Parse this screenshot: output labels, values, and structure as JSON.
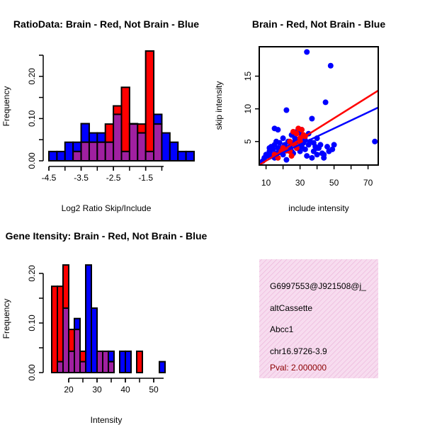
{
  "colors": {
    "red": "#ff0000",
    "blue": "#0000ff",
    "overlap": "#a020a0",
    "pink_bg": "#f5d8ec",
    "pval": "#8b0000"
  },
  "chart_data": [
    {
      "type": "bar",
      "id": "ratio-histogram",
      "title": "RatioData: Brain - Red, Not Brain - Blue",
      "xlabel": "Log2 Ratio Skip/Include",
      "ylabel": "Frequency",
      "xlim": [
        -4.5,
        -0.9
      ],
      "ylim": [
        0,
        0.26
      ],
      "xticks": [
        -4.5,
        -3.5,
        -2.5,
        -1.5
      ],
      "xtick_labels": [
        "-4.5",
        "-3.5",
        "-2.5",
        "-1.5"
      ],
      "yticks": [
        0,
        0.1,
        0.2
      ],
      "ytick_labels": [
        "0.00",
        "0.10",
        "0.20"
      ],
      "bin_start": -4.5,
      "bin_width": 0.25,
      "series": [
        {
          "name": "Brain",
          "color": "red",
          "values": [
            0,
            0,
            0,
            0.022,
            0.044,
            0.044,
            0.044,
            0.087,
            0.13,
            0.174,
            0.087,
            0.087,
            0.26,
            0.087,
            0,
            0,
            0,
            0
          ]
        },
        {
          "name": "Not Brain",
          "color": "blue",
          "values": [
            0.022,
            0.022,
            0.044,
            0.044,
            0.088,
            0.066,
            0.066,
            0.044,
            0.11,
            0.022,
            0.088,
            0.066,
            0.022,
            0.11,
            0.066,
            0.044,
            0.022,
            0.022
          ]
        }
      ]
    },
    {
      "type": "scatter",
      "id": "intensity-scatter",
      "title": "Brain - Red, Not Brain - Blue",
      "xlabel": "include intensity",
      "ylabel": "skip intensity",
      "xlim": [
        6,
        76
      ],
      "ylim": [
        1.4,
        19.5
      ],
      "xticks": [
        10,
        30,
        50,
        70
      ],
      "xtick_labels": [
        "10",
        "30",
        "50",
        "70"
      ],
      "yticks": [
        5,
        10,
        15
      ],
      "ytick_labels": [
        "5",
        "10",
        "15"
      ],
      "series": [
        {
          "name": "Brain",
          "color": "red",
          "x": [
            15,
            17,
            19,
            20,
            22,
            24,
            26,
            27,
            28,
            29,
            30,
            31,
            32,
            33,
            24,
            28,
            30,
            25
          ],
          "y": [
            3,
            2.5,
            3.5,
            4,
            3.6,
            5,
            6.5,
            4.5,
            6.2,
            7,
            5.5,
            6.8,
            6,
            5.8,
            3.5,
            4,
            5,
            2.8
          ],
          "fit": [
            [
              6,
              1.4
            ],
            [
              76,
              12.8
            ]
          ]
        },
        {
          "name": "Not Brain",
          "color": "blue",
          "x": [
            8,
            9,
            10,
            11,
            12,
            12,
            13,
            13,
            14,
            15,
            15,
            16,
            16,
            17,
            17,
            18,
            18,
            19,
            20,
            20,
            21,
            22,
            22,
            23,
            24,
            25,
            25,
            26,
            27,
            28,
            28,
            29,
            30,
            31,
            31,
            32,
            33,
            33,
            34,
            35,
            35,
            36,
            37,
            38,
            38,
            39,
            40,
            40,
            41,
            42,
            43,
            44,
            45,
            46,
            48,
            49,
            50,
            15,
            19,
            22,
            26,
            29,
            34,
            37,
            40,
            44,
            47,
            31,
            74
          ],
          "y": [
            2,
            2.5,
            3,
            2.8,
            3.5,
            4,
            3,
            4.2,
            3.8,
            2.5,
            4.5,
            3.2,
            5,
            4,
            6.8,
            3.5,
            4.8,
            4,
            3,
            5.5,
            4.5,
            3.8,
            9.8,
            5,
            4.2,
            6,
            3.5,
            4.8,
            5.5,
            4,
            6.5,
            5,
            3.5,
            4.2,
            6,
            4.8,
            3.8,
            5.2,
            18.7,
            4.5,
            6.2,
            5,
            8.5,
            3.5,
            4.8,
            4.2,
            5.5,
            3,
            4,
            4.5,
            3.2,
            2.5,
            11,
            4.2,
            16.6,
            3.8,
            4.5,
            7,
            3.8,
            2.2,
            3.2,
            6.5,
            2.8,
            2.5,
            4,
            3,
            3.5,
            6.8,
            5
          ],
          "fit": [
            [
              6,
              1.6
            ],
            [
              76,
              10.2
            ]
          ]
        }
      ]
    },
    {
      "type": "bar",
      "id": "intensity-histogram",
      "title": "Gene Itensity: Brain - Red, Not Brain - Blue",
      "xlabel": "Intensity",
      "ylabel": "Frequency",
      "xlim": [
        13,
        54
      ],
      "ylim": [
        0,
        0.22
      ],
      "xticks": [
        20,
        30,
        40,
        50
      ],
      "xtick_labels": [
        "20",
        "30",
        "40",
        "50"
      ],
      "yticks": [
        0,
        0.1,
        0.2
      ],
      "ytick_labels": [
        "0.00",
        "0.10",
        "0.20"
      ],
      "bin_start": 14,
      "bin_width": 2,
      "series": [
        {
          "name": "Brain",
          "color": "red",
          "values": [
            0.174,
            0.174,
            0.217,
            0.087,
            0.087,
            0.043,
            0,
            0,
            0.043,
            0.043,
            0.022,
            0,
            0,
            0,
            0,
            0.043,
            0,
            0,
            0,
            0
          ]
        },
        {
          "name": "Not Brain",
          "color": "blue",
          "values": [
            0,
            0.022,
            0.13,
            0.043,
            0.109,
            0.022,
            0.217,
            0.13,
            0.043,
            0.043,
            0.043,
            0,
            0.043,
            0.043,
            0,
            0,
            0,
            0,
            0,
            0.022
          ]
        }
      ]
    }
  ],
  "info_box": {
    "probe_id": "G6997553@J921508@j_",
    "event_type": "altCassette",
    "gene": "Abcc1",
    "location": "chr16.9726-3.9",
    "pval": "Pval: 2.000000"
  }
}
